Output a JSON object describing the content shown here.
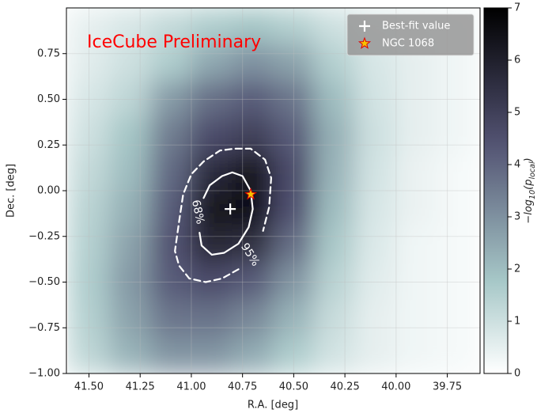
{
  "chart_data": {
    "type": "heatmap",
    "annotation": "IceCube Preliminary",
    "xlabel": "R.A. [deg]",
    "ylabel": "Dec. [deg]",
    "xlim": [
      41.61,
      39.59
    ],
    "ylim": [
      -1.0,
      1.0
    ],
    "xticks": [
      {
        "value": 41.5,
        "label": "41.50"
      },
      41.25,
      {
        "value": 41.0,
        "label": "41.00"
      },
      40.75,
      {
        "value": 40.5,
        "label": "40.50"
      },
      40.25,
      {
        "value": 40.0,
        "label": "40.00"
      },
      39.75
    ],
    "yticks": [
      {
        "value": -1.0,
        "label": "−1.00"
      },
      {
        "value": -0.75,
        "label": "−0.75"
      },
      {
        "value": -0.5,
        "label": "−0.50"
      },
      {
        "value": -0.25,
        "label": "−0.25"
      },
      {
        "value": 0,
        "label": "0.00"
      },
      0.25,
      {
        "value": 0.5,
        "label": "0.50"
      },
      0.75
    ],
    "grid": true,
    "colormap": "bone_r",
    "clim": [
      0,
      7
    ],
    "colorbar_ticks": [
      0,
      1,
      2,
      3,
      4,
      5,
      6,
      7
    ],
    "colorbar_label": [
      "−log",
      "10",
      "(p",
      "local",
      ")"
    ],
    "x": [
      41.5,
      41.3,
      41.1,
      40.9,
      40.7,
      40.5,
      40.3,
      40.1,
      39.9,
      39.7
    ],
    "y": [
      0.9,
      0.7,
      0.5,
      0.3,
      0.1,
      -0.1,
      -0.3,
      -0.5,
      -0.7,
      -0.9
    ],
    "z": [
      [
        0.5,
        0.8,
        1.2,
        1.6,
        1.8,
        1.5,
        1.0,
        0.6,
        0.4,
        0.3
      ],
      [
        0.6,
        1.0,
        1.6,
        2.5,
        3.0,
        2.6,
        1.5,
        0.8,
        0.5,
        0.3
      ],
      [
        0.8,
        1.3,
        2.8,
        3.8,
        4.2,
        3.6,
        2.0,
        0.9,
        0.5,
        0.3
      ],
      [
        1.0,
        1.8,
        3.5,
        4.6,
        5.0,
        4.2,
        2.3,
        1.0,
        0.5,
        0.3
      ],
      [
        1.2,
        2.0,
        3.9,
        5.6,
        6.3,
        4.6,
        2.2,
        0.9,
        0.4,
        0.2
      ],
      [
        1.4,
        2.3,
        4.2,
        6.4,
        6.6,
        4.5,
        2.0,
        0.8,
        0.4,
        0.2
      ],
      [
        1.5,
        2.6,
        4.4,
        5.8,
        5.5,
        3.8,
        1.7,
        0.7,
        0.3,
        0.2
      ],
      [
        1.6,
        2.8,
        4.2,
        4.6,
        4.2,
        2.9,
        1.4,
        0.6,
        0.3,
        0.2
      ],
      [
        1.5,
        2.6,
        3.6,
        3.7,
        3.2,
        2.2,
        1.1,
        0.5,
        0.3,
        0.2
      ],
      [
        1.3,
        2.2,
        2.9,
        2.9,
        2.4,
        1.6,
        0.9,
        0.5,
        0.3,
        0.2
      ]
    ],
    "contours": [
      {
        "label": "68%",
        "color": "#ffffff",
        "dashed": false,
        "x": [
          40.94,
          40.91,
          40.85,
          40.8,
          40.75,
          40.71,
          40.7,
          40.72,
          40.77,
          40.84,
          40.9,
          40.95,
          40.96
        ],
        "y": [
          -0.04,
          0.03,
          0.08,
          0.1,
          0.08,
          0.0,
          -0.1,
          -0.2,
          -0.29,
          -0.34,
          -0.35,
          -0.3,
          -0.23
        ]
      },
      {
        "label": "95%",
        "color": "#ffffff",
        "dashed": true,
        "x": [
          40.77,
          40.85,
          40.93,
          41.01,
          41.06,
          41.08,
          41.06,
          41.04,
          41.0,
          40.94,
          40.86,
          40.79,
          40.71,
          40.64,
          40.61,
          40.62,
          40.65
        ],
        "y": [
          -0.43,
          -0.48,
          -0.5,
          -0.48,
          -0.41,
          -0.33,
          -0.17,
          -0.02,
          0.09,
          0.16,
          0.22,
          0.23,
          0.23,
          0.17,
          0.07,
          -0.09,
          -0.22
        ]
      }
    ],
    "series": [
      {
        "name": "Best-fit value",
        "marker": "plus",
        "color": "#ffffff",
        "x": [
          40.81
        ],
        "y": [
          -0.1
        ]
      },
      {
        "name": "NGC 1068",
        "marker": "star",
        "color": "#f5c400",
        "edgecolor": "#e00000",
        "x": [
          40.71
        ],
        "y": [
          -0.02
        ]
      }
    ],
    "legend": "upper right"
  }
}
